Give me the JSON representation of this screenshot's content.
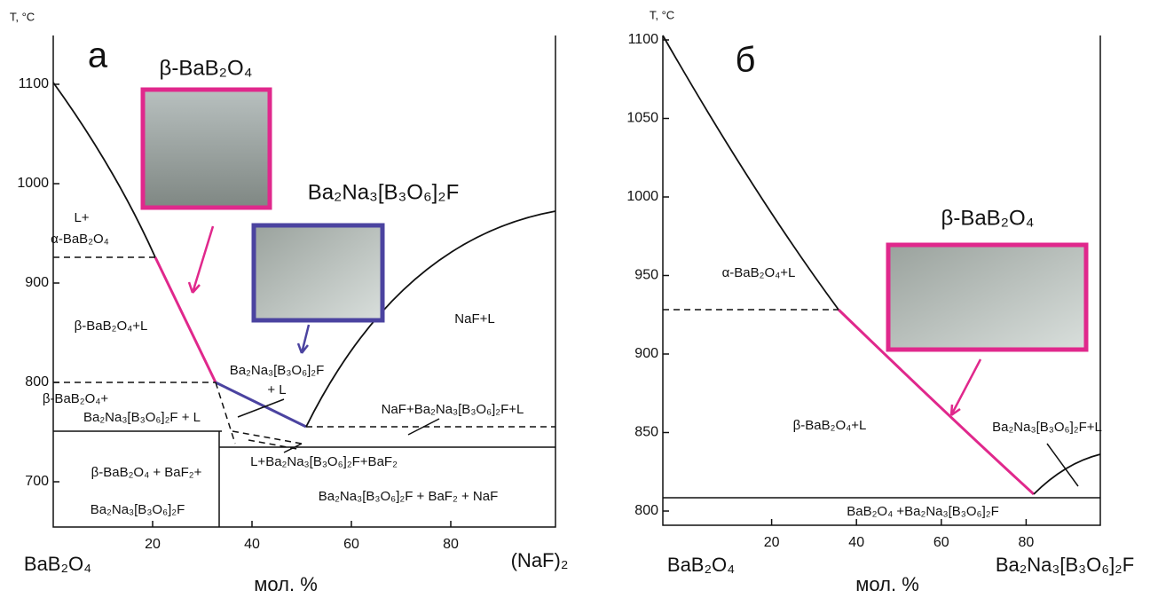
{
  "panel_a": {
    "letter": "а",
    "y_axis_label": "T, °C",
    "yticks": [
      700,
      800,
      900,
      1000,
      1100
    ],
    "xticks": [
      20,
      40,
      60,
      80
    ],
    "x_left_label": "BaB₂O₄",
    "x_right_label": "(NaF)₂",
    "x_axis_label": "мол. %",
    "photo_1_title": "β-BaB₂O₄",
    "photo_2_title": "Ba₂Na₃[B₃O₆]₂F",
    "regions": [
      "L+",
      "α-BaB₂O₄",
      "β-BaB₂O₄+L",
      "β-BaB₂O₄+",
      "Ba₂Na₃[B₃O₆]₂F + L",
      "β-BaB₂O₄ + BaF₂+",
      "Ba₂Na₃[B₃O₆]₂F",
      "Ba₂Na₃[B₃O₆]₂F",
      "+ L",
      "L+Ba₂Na₃[B₃O₆]₂F+BaF₂",
      "Ba₂Na₃[B₃O₆]₂F + BaF₂ + NaF",
      "NaF+L",
      "NaF+Ba₂Na₃[B₃O₆]₂F+L"
    ]
  },
  "panel_b": {
    "letter": "б",
    "y_axis_label": "T, °C",
    "yticks": [
      800,
      850,
      900,
      950,
      1000,
      1050,
      1100
    ],
    "xticks": [
      20,
      40,
      60,
      80
    ],
    "x_left_label": "BaB₂O₄",
    "x_right_label": "Ba₂Na₃[B₃O₆]₂F",
    "x_axis_label": "мол. %",
    "photo_title": "β-BaB₂O₄",
    "regions": [
      "α-BaB₂O₄+L",
      "β-BaB₂O₄+L",
      "Ba₂Na₃[B₃O₆]₂F+L",
      "BaB₂O₄ +Ba₂Na₃[B₃O₆]₂F"
    ]
  }
}
